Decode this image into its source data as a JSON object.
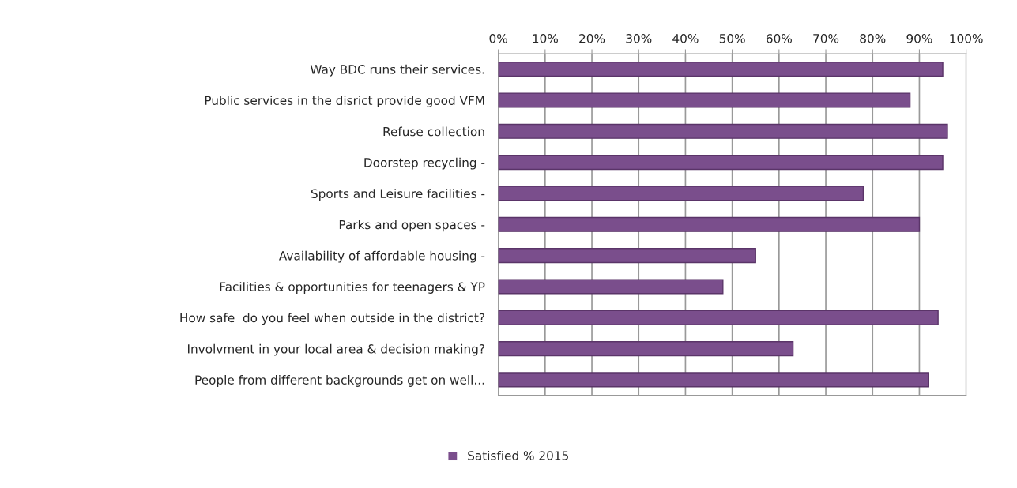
{
  "chart_data": {
    "type": "bar",
    "orientation": "horizontal",
    "categories": [
      "Way BDC runs their services.",
      "Public services in the disrict provide good VFM",
      "Refuse collection",
      "Doorstep recycling -",
      "Sports and Leisure facilities -",
      "Parks and open spaces -",
      "Availability of affordable housing -",
      "Facilities & opportunities for teenagers & YP",
      "How safe  do you feel when outside in the district?",
      "Involvment in your local area & decision making?",
      "People from different backgrounds get on well..."
    ],
    "series": [
      {
        "name": "Satisfied % 2015",
        "color": "#7a4e8c",
        "values": [
          95,
          88,
          96,
          95,
          78,
          90,
          55,
          48,
          94,
          63,
          92
        ]
      }
    ],
    "xlim": [
      0,
      100
    ],
    "xticks": [
      {
        "value": 0,
        "label": "0%"
      },
      {
        "value": 10,
        "label": "10%"
      },
      {
        "value": 20,
        "label": "20%"
      },
      {
        "value": 30,
        "label": "30%"
      },
      {
        "value": 40,
        "label": "40%"
      },
      {
        "value": 50,
        "label": "50%"
      },
      {
        "value": 60,
        "label": "60%"
      },
      {
        "value": 70,
        "label": "70%"
      },
      {
        "value": 80,
        "label": "80%"
      },
      {
        "value": 90,
        "label": "90%"
      },
      {
        "value": 100,
        "label": "100%"
      }
    ],
    "grid": "x",
    "legend": "bottom"
  }
}
